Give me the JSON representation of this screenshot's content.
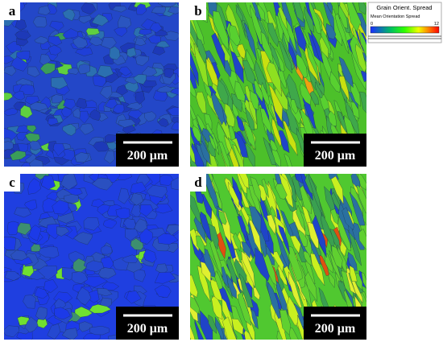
{
  "panels": [
    {
      "label": "a",
      "scale": "200 μm"
    },
    {
      "label": "b",
      "scale": "200 μm"
    },
    {
      "label": "c",
      "scale": "200 μm"
    },
    {
      "label": "d",
      "scale": "200 μm"
    }
  ],
  "legend": {
    "title": "Grain Orient. Spread",
    "subtitle": "Mean Orientation Spread",
    "min": "0",
    "max": "12"
  }
}
